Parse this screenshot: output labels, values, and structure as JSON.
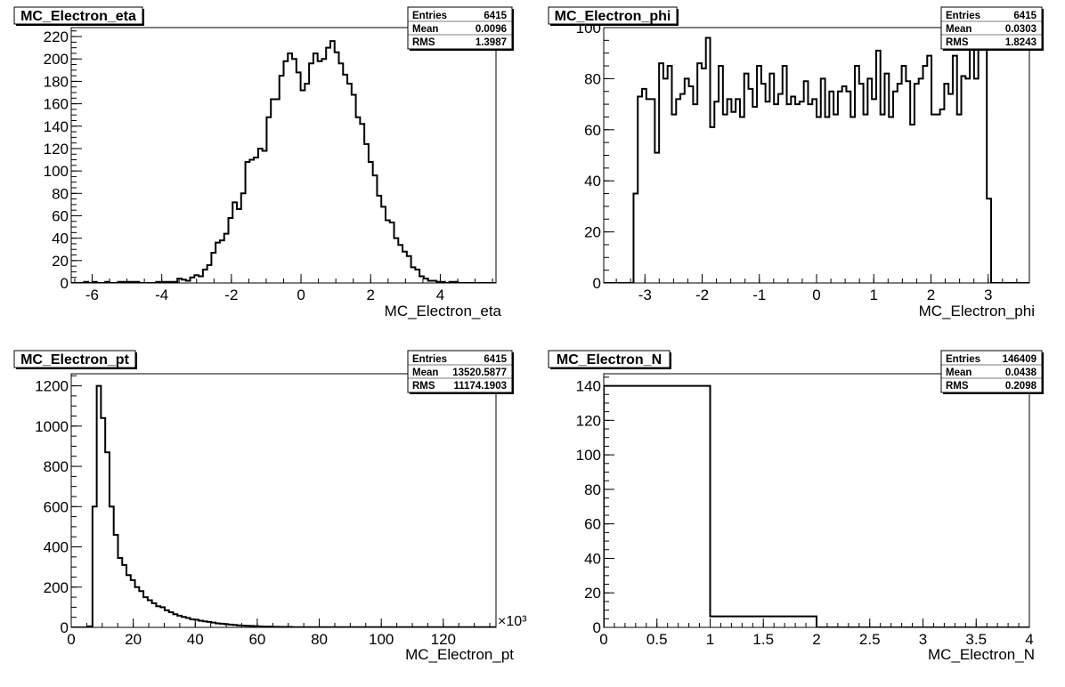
{
  "chart_data": [
    {
      "type": "bar",
      "title": "MC_Electron_eta",
      "xlabel": "MC_Electron_eta",
      "ylabel": "",
      "xlim": [
        -6.6,
        5.6
      ],
      "ylim": [
        0,
        228
      ],
      "xticks": [
        -6,
        -4,
        -2,
        0,
        2,
        4
      ],
      "yticks": [
        0,
        20,
        40,
        60,
        80,
        100,
        120,
        140,
        160,
        180,
        200,
        220
      ],
      "x_multiplier": "",
      "bins": {
        "start": -6.6,
        "width": 0.122
      },
      "values": [
        0,
        0,
        0,
        1,
        0,
        1,
        0,
        0,
        1,
        0,
        0,
        1,
        1,
        1,
        1,
        1,
        0,
        0,
        0,
        0,
        1,
        1,
        1,
        1,
        1,
        4,
        3,
        2,
        5,
        7,
        6,
        12,
        16,
        27,
        36,
        38,
        44,
        58,
        72,
        66,
        80,
        108,
        110,
        112,
        120,
        118,
        148,
        164,
        164,
        185,
        198,
        205,
        200,
        188,
        172,
        178,
        196,
        205,
        198,
        200,
        210,
        216,
        206,
        196,
        186,
        178,
        168,
        148,
        142,
        124,
        108,
        96,
        78,
        68,
        56,
        54,
        40,
        34,
        28,
        24,
        14,
        12,
        6,
        4,
        2,
        2,
        1,
        1,
        0,
        1,
        1,
        0,
        0,
        0,
        0,
        0,
        0,
        0,
        0,
        0
      ],
      "stats": {
        "entries": "6415",
        "mean": "0.0096",
        "rms": "1.3987"
      }
    },
    {
      "type": "bar",
      "title": "MC_Electron_phi",
      "xlabel": "MC_Electron_phi",
      "ylabel": "",
      "xlim": [
        -3.72,
        3.72
      ],
      "ylim": [
        0,
        100
      ],
      "xticks": [
        -3,
        -2,
        -1,
        0,
        1,
        2,
        3
      ],
      "yticks": [
        0,
        20,
        40,
        60,
        80,
        100
      ],
      "x_multiplier": "",
      "bins": {
        "start": -3.72,
        "width": 0.0744
      },
      "values": [
        0,
        0,
        0,
        0,
        0,
        0,
        0,
        35,
        73,
        76,
        72,
        72,
        51,
        86,
        80,
        85,
        66,
        72,
        74,
        80,
        77,
        70,
        86,
        84,
        96,
        61,
        71,
        85,
        66,
        72,
        67,
        72,
        65,
        82,
        76,
        69,
        85,
        78,
        71,
        82,
        70,
        74,
        85,
        70,
        73,
        70,
        71,
        79,
        70,
        72,
        65,
        80,
        65,
        75,
        66,
        75,
        77,
        75,
        65,
        85,
        78,
        66,
        80,
        72,
        91,
        66,
        82,
        65,
        75,
        78,
        85,
        79,
        62,
        78,
        80,
        85,
        89,
        66,
        66,
        68,
        78,
        74,
        89,
        66,
        81,
        80,
        100,
        80,
        100,
        92,
        33,
        0,
        0,
        0,
        0,
        0,
        0,
        0,
        0,
        0
      ],
      "stats": {
        "entries": "6415",
        "mean": "0.0303",
        "rms": "1.8243"
      }
    },
    {
      "type": "bar",
      "title": "MC_Electron_pt",
      "xlabel": "MC_Electron_pt",
      "ylabel": "",
      "xlim": [
        0,
        137
      ],
      "ylim": [
        0,
        1260
      ],
      "xticks": [
        0,
        20,
        40,
        60,
        80,
        100,
        120
      ],
      "yticks": [
        0,
        200,
        400,
        600,
        800,
        1000,
        1200
      ],
      "x_multiplier": "×10³",
      "bins": {
        "start": 0,
        "width": 1.37
      },
      "values": [
        0,
        0,
        0,
        0,
        5,
        600,
        1200,
        1040,
        870,
        600,
        460,
        345,
        310,
        260,
        235,
        200,
        180,
        150,
        135,
        120,
        105,
        100,
        85,
        75,
        65,
        58,
        52,
        47,
        40,
        38,
        33,
        30,
        27,
        24,
        20,
        18,
        16,
        14,
        12,
        10,
        9,
        8,
        7,
        6,
        5,
        4,
        4,
        3,
        3,
        2,
        2,
        2,
        1,
        1,
        1,
        1,
        1,
        1,
        1,
        1,
        1,
        1,
        1,
        1,
        1,
        1,
        1,
        1,
        1,
        1,
        1,
        1,
        1,
        1,
        1,
        1,
        1,
        1,
        1,
        1,
        1,
        1,
        1,
        1,
        1,
        1,
        1,
        1,
        1,
        1,
        1,
        1,
        1,
        1,
        1,
        1,
        1,
        1,
        1,
        1
      ],
      "stats": {
        "entries": "6415",
        "mean": "13520.5877",
        "rms": "11174.1903"
      }
    },
    {
      "type": "bar",
      "title": "MC_Electron_N",
      "xlabel": "MC_Electron_N",
      "ylabel": "",
      "xlim": [
        0,
        4
      ],
      "ylim": [
        0,
        147
      ],
      "xticks": [
        0,
        0.5,
        1,
        1.5,
        2,
        2.5,
        3,
        3.5,
        4
      ],
      "yticks": [
        0,
        20,
        40,
        60,
        80,
        100,
        120,
        140
      ],
      "x_multiplier": "",
      "bins": {
        "start": 0,
        "width": 1
      },
      "values": [
        140,
        6.4,
        0,
        0
      ],
      "stats": {
        "entries": "146409",
        "mean": "0.0438",
        "rms": "0.2098"
      }
    }
  ],
  "stats_labels": {
    "entries": "Entries",
    "mean": "Mean",
    "rms": "RMS"
  }
}
